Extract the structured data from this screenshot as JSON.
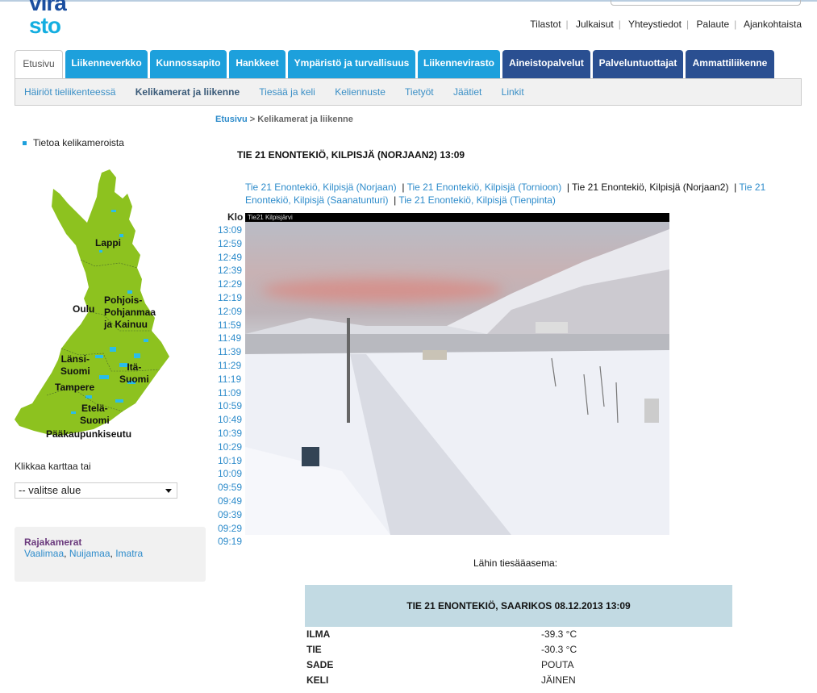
{
  "logo": {
    "line1": "vira",
    "line2": "sto"
  },
  "top_links": [
    "Tilastot",
    "Julkaisut",
    "Yhteystiedot",
    "Palaute",
    "Ajankohtaista"
  ],
  "tabs": [
    {
      "label": "Etusivu",
      "active": true
    },
    {
      "label": "Liikenneverkko"
    },
    {
      "label": "Kunnossapito"
    },
    {
      "label": "Hankkeet"
    },
    {
      "label": "Ympäristö ja turvallisuus"
    },
    {
      "label": "Liikennevirasto"
    },
    {
      "label": "Aineistopalvelut"
    },
    {
      "label": "Palveluntuottajat"
    },
    {
      "label": "Ammattiliikenne"
    }
  ],
  "subnav": [
    "Häiriöt tieliikenteessä",
    "Kelikamerat ja liikenne",
    "Tiesää ja keli",
    "Keliennuste",
    "Tietyöt",
    "Jäätiet",
    "Linkit"
  ],
  "breadcrumb": {
    "home": "Etusivu",
    "sep": " > ",
    "current": "Kelikamerat ja liikenne"
  },
  "sidebar": {
    "info_link": "Tietoa kelikameroista",
    "map_labels": {
      "lappi": "Lappi",
      "oulu": "Oulu",
      "pohjois": "Pohjois-\nPohjanmaa\nja Kainuu",
      "lansi": "Länsi-\nSuomi",
      "ita": "Itä-\nSuomi",
      "tampere": "Tampere",
      "etela": "Etelä-\nSuomi",
      "paakaupunki": "Pääkaupunkiseutu"
    },
    "map_color": "#8dc21f",
    "click_text": "Klikkaa karttaa tai",
    "select_value": "-- valitse alue",
    "raja_title": "Rajakamerat",
    "raja_links": [
      "Vaalimaa",
      "Nuijamaa",
      "Imatra"
    ]
  },
  "main": {
    "title": "TIE 21 ENONTEKIÖ, KILPISJÄ (NORJAAN2) 13:09",
    "camera_links": [
      {
        "label": "Tie 21 Enontekiö, Kilpisjä (Norjaan)",
        "current": false
      },
      {
        "label": "Tie 21 Enontekiö, Kilpisjä (Tornioon)",
        "current": false
      },
      {
        "label": "Tie 21 Enontekiö, Kilpisjä (Norjaan2)",
        "current": true
      },
      {
        "label": "Tie 21 Enontekiö, Kilpisjä (Saanatunturi)",
        "current": false
      },
      {
        "label": "Tie 21 Enontekiö, Kilpisjä (Tienpinta)",
        "current": false
      }
    ],
    "klo_label": "Klo",
    "times": [
      "13:09",
      "12:59",
      "12:49",
      "12:39",
      "12:29",
      "12:19",
      "12:09",
      "11:59",
      "11:49",
      "11:39",
      "11:29",
      "11:19",
      "11:09",
      "10:59",
      "10:49",
      "10:39",
      "10:29",
      "10:19",
      "10:09",
      "09:59",
      "09:49",
      "09:39",
      "09:29",
      "09:19"
    ],
    "camera_overlay": "Tie21  Kilpisjärvi",
    "nearest_label": "Lähin tiesääasema:",
    "station": {
      "title": "TIE 21 ENONTEKIÖ, SAARIKOS 08.12.2013 13:09",
      "rows": [
        {
          "key": "ILMA",
          "value": "-39.3 °C"
        },
        {
          "key": "TIE",
          "value": "-30.3 °C"
        },
        {
          "key": "SADE",
          "value": "POUTA"
        },
        {
          "key": "KELI",
          "value": "JÄINEN"
        }
      ]
    }
  }
}
